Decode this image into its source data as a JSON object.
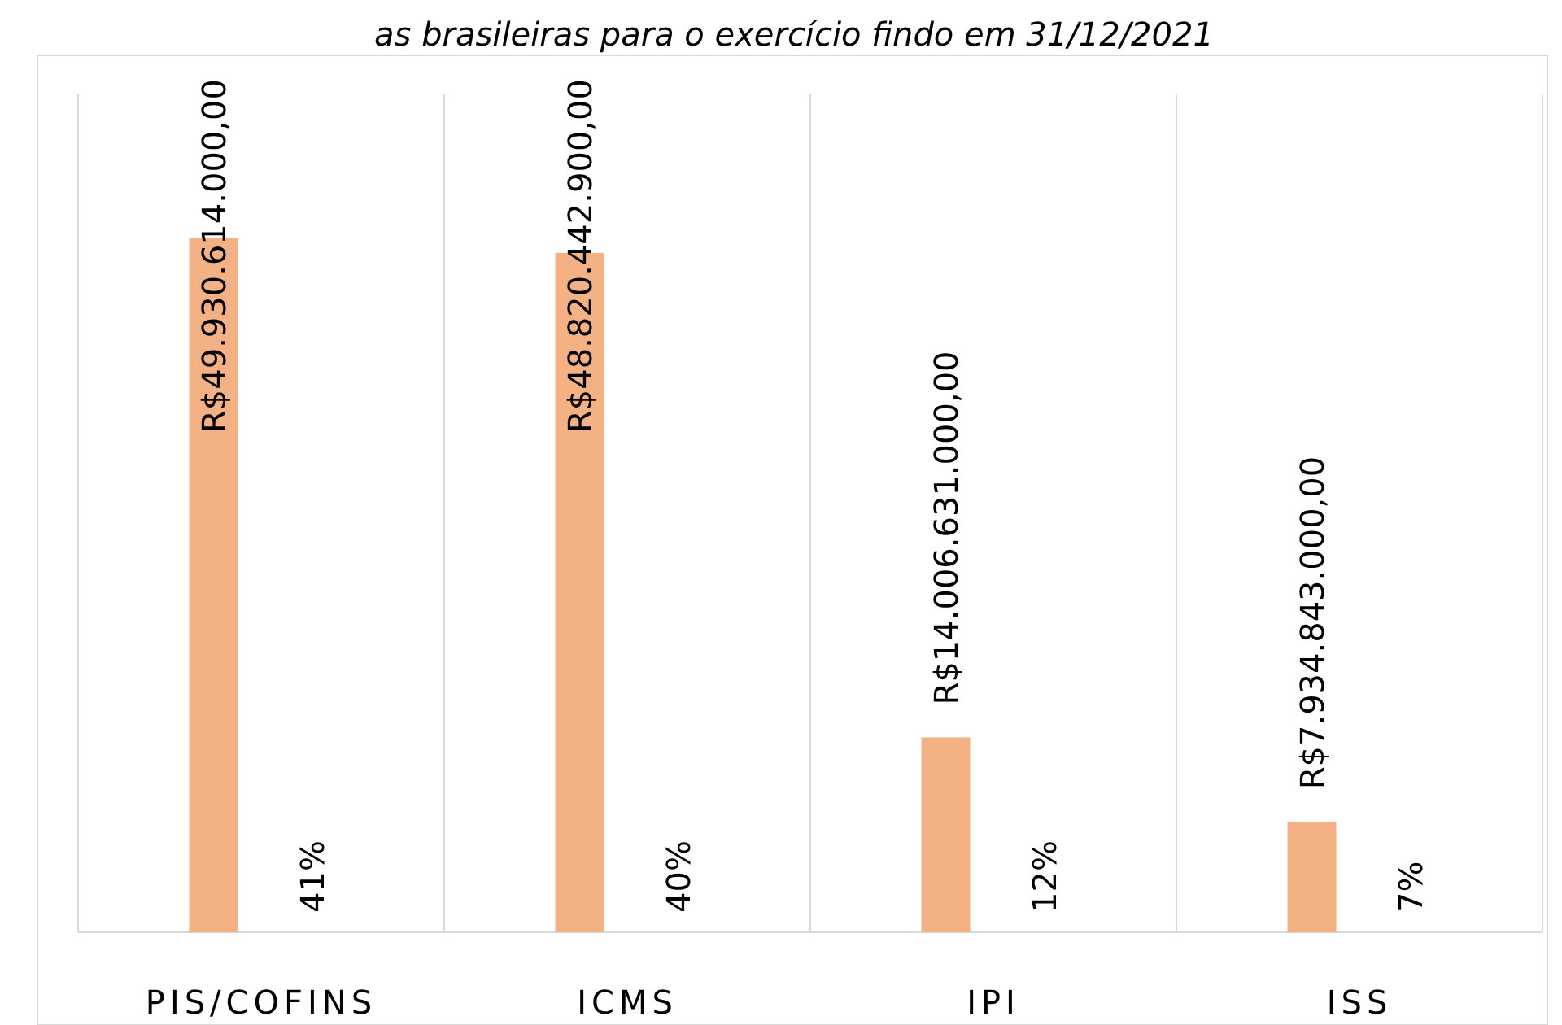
{
  "chart_data": {
    "type": "bar",
    "title": "as brasileiras para o exercício findo em 31/12/2021",
    "categories": [
      "PIS/COFINS",
      "ICMS",
      "IPI",
      "ISS"
    ],
    "series": [
      {
        "color": "#f4b183",
        "values": [
          49930614000,
          48820442900,
          14006631000,
          7934843000
        ],
        "value_labels": [
          "R$49.930.614.000,00",
          "R$48.820.442.900,00",
          "R$14.006.631.000,00",
          "R$7.934.843.000,00"
        ]
      }
    ],
    "annotations": [
      "41%",
      "40%",
      "12%",
      "7%"
    ],
    "grid": "x"
  }
}
